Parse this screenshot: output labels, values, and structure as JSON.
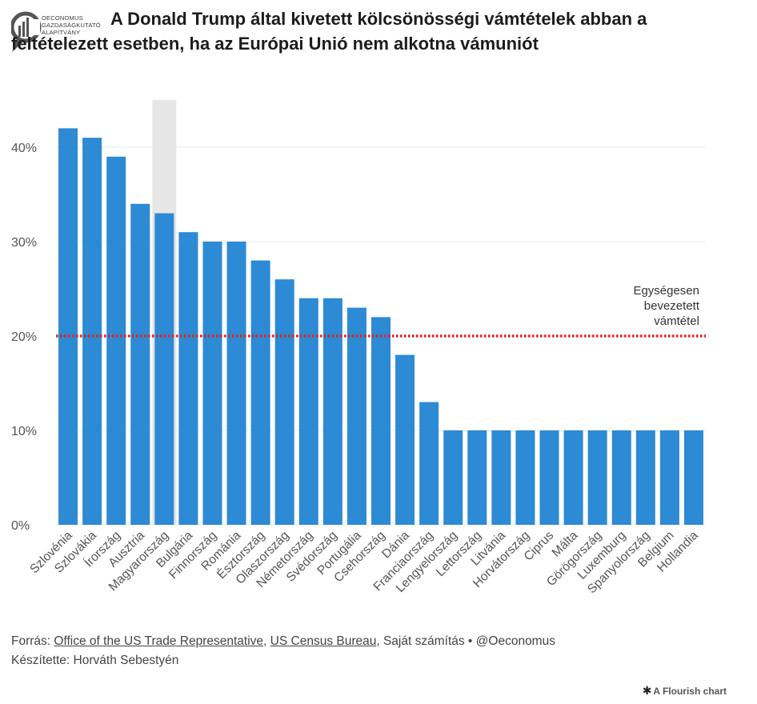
{
  "logo": {
    "line1": "OECONOMUS",
    "line2": "GAZDASÁGKUTATÓ",
    "line3": "ALAPÍTVÁNY",
    "icon": "oeconomus-logo-icon"
  },
  "title": "A Donald Trump által kivetett kölcsönösségi vámtételek abban a feltételezett esetben, ha az Európai Unió nem alkotna vámuniót",
  "chart_data": {
    "type": "bar",
    "categories": [
      "Szlovénia",
      "Szlovákia",
      "Írország",
      "Ausztria",
      "Magyarország",
      "Bulgária",
      "Finnország",
      "Románia",
      "Észtország",
      "Olaszország",
      "Németország",
      "Svédország",
      "Portugália",
      "Csehország",
      "Dánia",
      "Franciaország",
      "Lengyelország",
      "Lettország",
      "Litvánia",
      "Horvátország",
      "Ciprus",
      "Málta",
      "Görögország",
      "Luxemburg",
      "Spanyolország",
      "Belgium",
      "Hollandia"
    ],
    "values": [
      42,
      41,
      39,
      34,
      33,
      31,
      30,
      30,
      28,
      26,
      24,
      24,
      23,
      22,
      18,
      13,
      10,
      10,
      10,
      10,
      10,
      10,
      10,
      10,
      10,
      10,
      10
    ],
    "highlighted_category": "Magyarország",
    "ylim": [
      0,
      45
    ],
    "yticks": [
      0,
      10,
      20,
      30,
      40
    ],
    "ytick_labels": [
      "0%",
      "10%",
      "20%",
      "30%",
      "40%"
    ],
    "reference_line": {
      "value": 20,
      "label_lines": [
        "Egységesen",
        "bevezetett",
        "vámtétel"
      ]
    },
    "xlabel": "",
    "ylabel": "",
    "grid": true,
    "colors": {
      "bar": "#2d8ad4",
      "highlight": "#e6e6e6",
      "reference": "#e0252b",
      "grid": "#e9e9e9",
      "axis_text": "#555555"
    }
  },
  "footer": {
    "source_prefix": "Forrás: ",
    "source_link1": "Office of the US Trade Representative",
    "sep1": ", ",
    "source_link2": "US Census Bureau",
    "source_suffix": ", Saját számítás • @Oeconomus",
    "author": "Készítette: Horváth Sebestyén"
  },
  "flourish": {
    "star": "✱",
    "label": "A Flourish chart"
  }
}
